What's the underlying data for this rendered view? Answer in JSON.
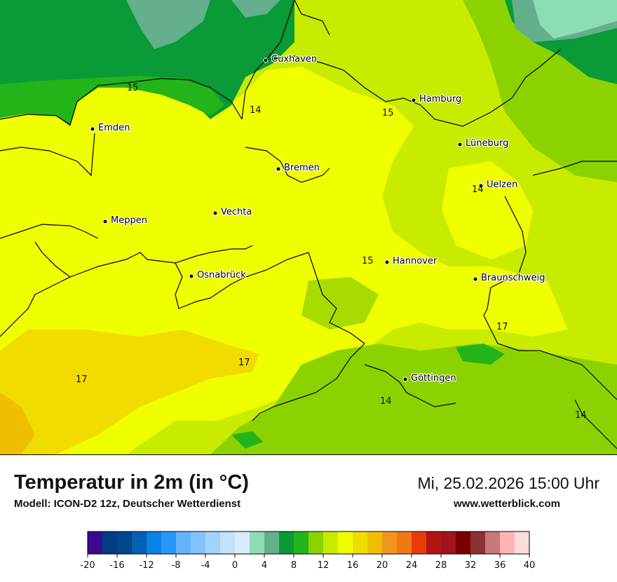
{
  "header": {
    "title": "Temperatur in 2m (in °C)",
    "model": "Modell: ICON-D2 12z, Deutscher Wetterdienst",
    "datetime": "Mi, 25.02.2026 15:00 Uhr",
    "website": "www.wetterblick.com"
  },
  "map": {
    "cities": [
      {
        "name": "Cuxhaven"
      },
      {
        "name": "Hamburg"
      },
      {
        "name": "Emden"
      },
      {
        "name": "Lüneburg"
      },
      {
        "name": "Bremen"
      },
      {
        "name": "Uelzen"
      },
      {
        "name": "Vechta"
      },
      {
        "name": "Meppen"
      },
      {
        "name": "Hannover"
      },
      {
        "name": "Osnabrück"
      },
      {
        "name": "Braunschweig"
      },
      {
        "name": "Göttingen"
      }
    ],
    "isotherm_labels": [
      "15",
      "14",
      "15",
      "14",
      "15",
      "17",
      "17",
      "17",
      "14",
      "14"
    ]
  },
  "legend": {
    "colors": [
      "#3a0a8c",
      "#003c82",
      "#00468c",
      "#0060b4",
      "#0a82e6",
      "#2896fa",
      "#64b4fa",
      "#82c3fa",
      "#a0d2fa",
      "#c3e1fa",
      "#d7ebfc",
      "#8cdcb4",
      "#64af8c",
      "#0a9a37",
      "#23b419",
      "#8cd200",
      "#c8eb00",
      "#f0ff00",
      "#f0dc00",
      "#f0be00",
      "#f0961e",
      "#f07814",
      "#e63c0a",
      "#b41414",
      "#a0141e",
      "#780000",
      "#8c3232",
      "#c87878",
      "#ffb4b4",
      "#ffdcdc"
    ],
    "ticks": [
      "-20",
      "-16",
      "-12",
      "-8",
      "-4",
      "0",
      "4",
      "8",
      "12",
      "16",
      "20",
      "24",
      "28",
      "32",
      "36",
      "40"
    ]
  }
}
